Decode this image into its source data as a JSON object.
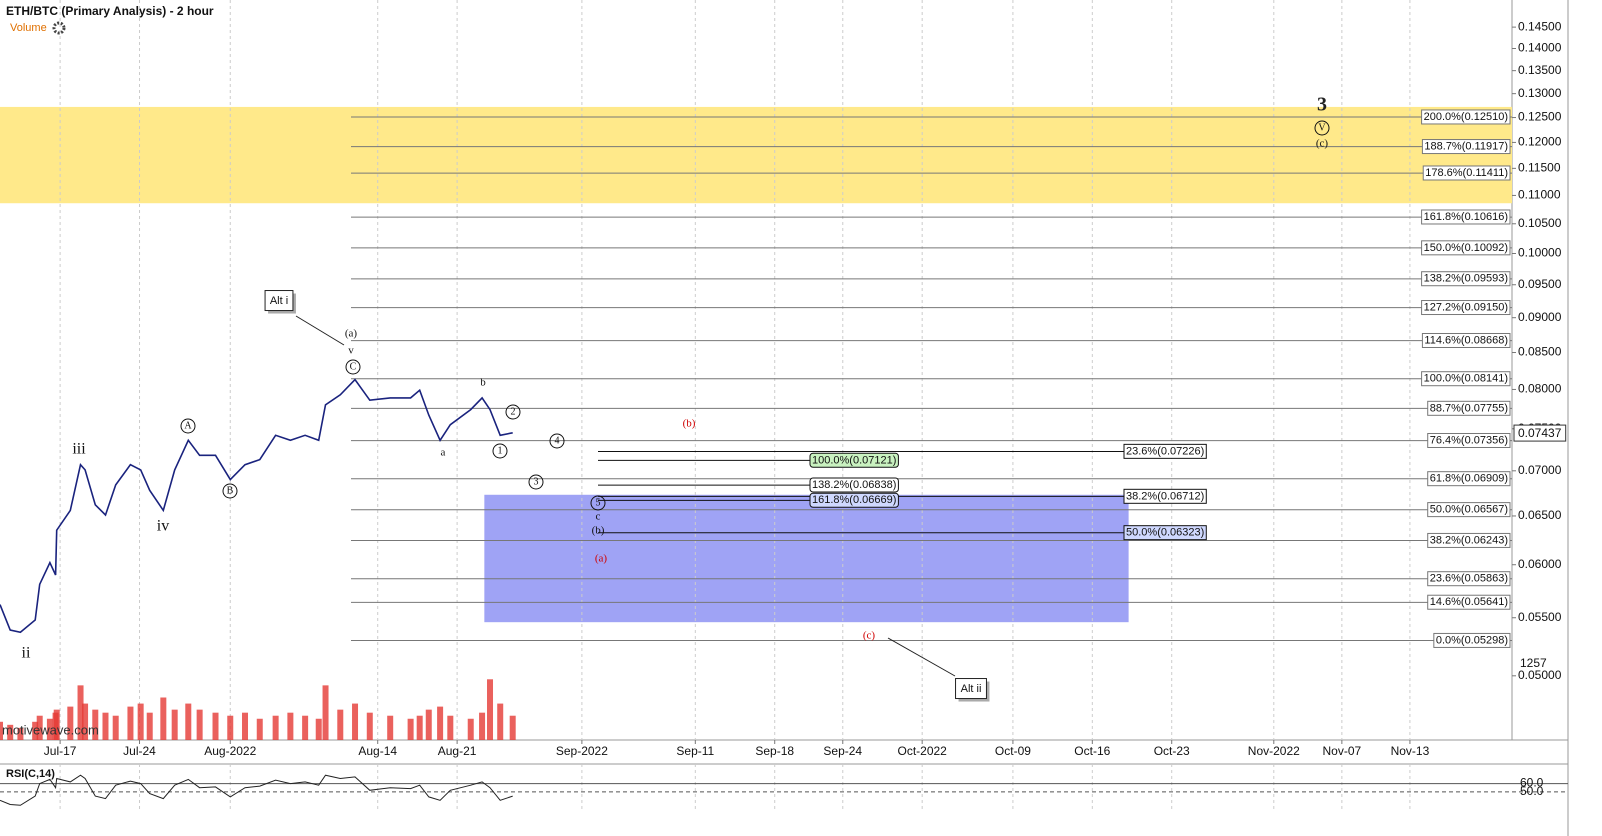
{
  "chart_data": {
    "type": "line",
    "title": "ETH/BTC (Primary Analysis) - 2 hour",
    "subtitle": "Volume",
    "watermark": "motivewave.com",
    "log_scale": true,
    "color": "#1a237e",
    "xlim": [
      -5.3,
      128
    ],
    "xticks": [
      {
        "value": 0,
        "label": "Jul-17"
      },
      {
        "value": 7,
        "label": "Jul-24"
      },
      {
        "value": 15,
        "label": "Aug-2022"
      },
      {
        "value": 28,
        "label": "Aug-14"
      },
      {
        "value": 35,
        "label": "Aug-21"
      },
      {
        "value": 46,
        "label": "Sep-2022"
      },
      {
        "value": 56,
        "label": "Sep-11"
      },
      {
        "value": 63,
        "label": "Sep-18"
      },
      {
        "value": 69,
        "label": "Sep-24"
      },
      {
        "value": 76,
        "label": "Oct-2022"
      },
      {
        "value": 84,
        "label": "Oct-09"
      },
      {
        "value": 91,
        "label": "Oct-16"
      },
      {
        "value": 98,
        "label": "Oct-23"
      },
      {
        "value": 107,
        "label": "Nov-2022"
      },
      {
        "value": 113,
        "label": "Nov-07"
      },
      {
        "value": 119,
        "label": "Nov-13"
      }
    ],
    "ylim": [
      0.045,
      0.1516
    ],
    "yticks": [
      {
        "value": 0.05,
        "label": "0.05000"
      },
      {
        "value": 0.055,
        "label": "0.05500"
      },
      {
        "value": 0.06,
        "label": "0.06000"
      },
      {
        "value": 0.065,
        "label": "0.06500"
      },
      {
        "value": 0.07,
        "label": "0.07000"
      },
      {
        "value": 0.075,
        "label": "0.07500"
      },
      {
        "value": 0.08,
        "label": "0.08000"
      },
      {
        "value": 0.085,
        "label": "0.08500"
      },
      {
        "value": 0.09,
        "label": "0.09000"
      },
      {
        "value": 0.095,
        "label": "0.09500"
      },
      {
        "value": 0.1,
        "label": "0.10000"
      },
      {
        "value": 0.105,
        "label": "0.10500"
      },
      {
        "value": 0.11,
        "label": "0.11000"
      },
      {
        "value": 0.115,
        "label": "0.11500"
      },
      {
        "value": 0.12,
        "label": "0.12000"
      },
      {
        "value": 0.125,
        "label": "0.12500"
      },
      {
        "value": 0.13,
        "label": "0.13000"
      },
      {
        "value": 0.135,
        "label": "0.13500"
      },
      {
        "value": 0.14,
        "label": "0.14000"
      },
      {
        "value": 0.145,
        "label": "0.14500"
      }
    ],
    "last_price": 0.07437,
    "x": [
      -5.3,
      -4.4,
      -3.5,
      -2.2,
      -1.8,
      -0.9,
      -0.4,
      -0.3,
      0.9,
      1.8,
      2.2,
      3.1,
      4.0,
      4.9,
      6.2,
      7.1,
      7.9,
      9.1,
      10.1,
      11.3,
      12.3,
      13.7,
      15.0,
      16.3,
      17.6,
      19.0,
      20.3,
      21.6,
      22.8,
      23.4,
      24.7,
      26.0,
      27.3,
      29.1,
      30.9,
      31.7,
      32.5,
      33.5,
      34.4,
      36.2,
      37.2,
      37.9,
      38.8,
      39.9
    ],
    "series": [
      {
        "name": "ETH/BTC",
        "color": "#1a237e",
        "values": [
          0.0562,
          0.0539,
          0.0537,
          0.0548,
          0.0581,
          0.0602,
          0.059,
          0.0635,
          0.0656,
          0.0707,
          0.0701,
          0.0662,
          0.0651,
          0.0684,
          0.0707,
          0.0701,
          0.0678,
          0.0656,
          0.0701,
          0.0736,
          0.0718,
          0.0718,
          0.069,
          0.0707,
          0.0713,
          0.0742,
          0.0736,
          0.0742,
          0.0736,
          0.078,
          0.0793,
          0.0813,
          0.0786,
          0.0789,
          0.0789,
          0.0799,
          0.0767,
          0.0736,
          0.0755,
          0.0774,
          0.0789,
          0.0774,
          0.0742,
          0.0745
        ]
      }
    ],
    "volume": {
      "color": "#e53935",
      "ylim": [
        0,
        1400
      ],
      "last": 1257,
      "values": [
        300,
        250,
        200,
        300,
        400,
        350,
        450,
        500,
        550,
        900,
        600,
        500,
        450,
        400,
        550,
        600,
        450,
        700,
        500,
        600,
        500,
        450,
        400,
        450,
        350,
        400,
        450,
        400,
        350,
        900,
        500,
        600,
        450,
        400,
        350,
        400,
        500,
        550,
        400,
        350,
        450,
        1000,
        600,
        400
      ]
    },
    "rsi": {
      "title": "RSI(C,14)",
      "color": "#222",
      "ylim": [
        26,
        81
      ],
      "yticks": [
        {
          "value": 50,
          "label": "50.0"
        },
        {
          "value": 60,
          "label": "60.0"
        }
      ],
      "values": [
        40,
        35,
        34,
        45,
        60,
        65,
        55,
        66,
        62,
        70,
        66,
        45,
        42,
        58,
        63,
        60,
        48,
        42,
        58,
        65,
        55,
        56,
        44,
        55,
        57,
        64,
        60,
        62,
        58,
        70,
        66,
        68,
        52,
        55,
        54,
        58,
        44,
        40,
        52,
        58,
        62,
        55,
        40,
        45
      ]
    },
    "zones": [
      {
        "color": "#ffe98a",
        "ylim": [
          0.1086,
          0.1272
        ]
      },
      {
        "color": "#9fa3f5",
        "ylim": [
          0.0546,
          0.0673
        ],
        "xlim": [
          37.4,
          94.2
        ]
      }
    ],
    "levels": [
      {
        "value": 0.1251,
        "label": "200.0%(0.12510)"
      },
      {
        "value": 0.11917,
        "label": "188.7%(0.11917)"
      },
      {
        "value": 0.11411,
        "label": "178.6%(0.11411)"
      },
      {
        "value": 0.10616,
        "label": "161.8%(0.10616)"
      },
      {
        "value": 0.10092,
        "label": "150.0%(0.10092)"
      },
      {
        "value": 0.09593,
        "label": "138.2%(0.09593)"
      },
      {
        "value": 0.0915,
        "label": "127.2%(0.09150)"
      },
      {
        "value": 0.08668,
        "label": "114.6%(0.08668)"
      },
      {
        "value": 0.08141,
        "label": "100.0%(0.08141)"
      },
      {
        "value": 0.07755,
        "label": "88.7%(0.07755)"
      },
      {
        "value": 0.07356,
        "label": "76.4%(0.07356)"
      },
      {
        "value": 0.06909,
        "label": "61.8%(0.06909)"
      },
      {
        "value": 0.06567,
        "label": "50.0%(0.06567)"
      },
      {
        "value": 0.06243,
        "label": "38.2%(0.06243)"
      },
      {
        "value": 0.05863,
        "label": "23.6%(0.05863)"
      },
      {
        "value": 0.05641,
        "label": "14.6%(0.05641)"
      },
      {
        "value": 0.05298,
        "label": "0.0%(0.05298)"
      }
    ],
    "retrace_levels": [
      {
        "value": 0.07226,
        "label": "23.6%(0.07226)"
      },
      {
        "value": 0.06712,
        "label": "38.2%(0.06712)"
      },
      {
        "value": 0.06323,
        "label": "50.0%(0.06323)"
      }
    ],
    "projection_levels": [
      {
        "value": 0.07121,
        "label": "100.0%(0.07121)",
        "color": "#c9f2c0"
      },
      {
        "value": 0.06838,
        "label": "138.2%(0.06838)",
        "color": "#ffffff"
      },
      {
        "value": 0.06669,
        "label": "161.8%(0.06669)",
        "color": "#cfd8ff"
      }
    ],
    "annotations": [
      {
        "text": "3",
        "style": "big"
      },
      {
        "text": "V",
        "style": "circle"
      },
      {
        "text": "(c)",
        "style": "plain"
      },
      {
        "text": "Alt i",
        "style": "box"
      },
      {
        "text": "(a)",
        "style": "plain"
      },
      {
        "text": "v",
        "style": "plain"
      },
      {
        "text": "C",
        "style": "circle"
      },
      {
        "text": "A",
        "style": "circle"
      },
      {
        "text": "B",
        "style": "circle"
      },
      {
        "text": "iii",
        "style": "large"
      },
      {
        "text": "iv",
        "style": "large"
      },
      {
        "text": "ii",
        "style": "large"
      },
      {
        "text": "b",
        "style": "plain"
      },
      {
        "text": "a",
        "style": "plain"
      },
      {
        "text": "2",
        "style": "circle"
      },
      {
        "text": "1",
        "style": "circle"
      },
      {
        "text": "4",
        "style": "circle"
      },
      {
        "text": "3",
        "style": "circle"
      },
      {
        "text": "5",
        "style": "circle"
      },
      {
        "text": "c",
        "style": "plain"
      },
      {
        "text": "(b)",
        "style": "plain"
      },
      {
        "text": "(a)",
        "style": "red"
      },
      {
        "text": "(b)",
        "style": "red"
      },
      {
        "text": "(c)",
        "style": "red"
      },
      {
        "text": "Alt ii",
        "style": "box"
      }
    ]
  }
}
